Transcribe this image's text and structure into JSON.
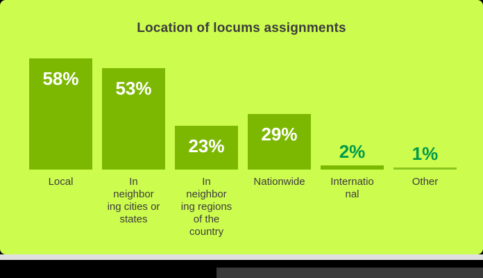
{
  "colors": {
    "card_background": "#ccfc4e",
    "bar_green": "#7cb802",
    "small_bar_green": "#8cc41e",
    "small_value_green": "#009a49",
    "value_white": "#ffffff",
    "title_text": "#3c3c3c",
    "category_text": "#3d3d3d",
    "strip_gray": "#e0e0e0",
    "letterbox_black": "#000000",
    "videobar_gray": "#3a3a3a"
  },
  "chart_data": {
    "type": "bar",
    "title": "Location of locums assignments",
    "categories": [
      "Local",
      "In\nneighbor\ning cities or\nstates",
      "In\nneighbor\ning regions\nof the\ncountry",
      "Nationwide",
      "Internatio\nnal",
      "Other"
    ],
    "values": [
      58,
      53,
      23,
      29,
      2,
      1
    ],
    "value_labels": [
      "58%",
      "53%",
      "23%",
      "29%",
      "2%",
      "1%"
    ],
    "unit": "%",
    "grid": false,
    "legend": "none",
    "axes_hidden": true,
    "bars": [
      {
        "category": "Local",
        "value": 58,
        "display": "58%",
        "label_position": "inside",
        "bar_color": "#7cb802",
        "value_color": "#ffffff"
      },
      {
        "category": "In\nneighbor\ning cities or\nstates",
        "value": 53,
        "display": "53%",
        "label_position": "inside",
        "bar_color": "#7cb802",
        "value_color": "#ffffff"
      },
      {
        "category": "In\nneighbor\ning regions\nof the\ncountry",
        "value": 23,
        "display": "23%",
        "label_position": "inside",
        "bar_color": "#7cb802",
        "value_color": "#ffffff"
      },
      {
        "category": "Nationwide",
        "value": 29,
        "display": "29%",
        "label_position": "inside",
        "bar_color": "#7cb802",
        "value_color": "#ffffff"
      },
      {
        "category": "Internatio\nnal",
        "value": 2,
        "display": "2%",
        "label_position": "above",
        "bar_color": "#7cb802",
        "value_color": "#009a49"
      },
      {
        "category": "Other",
        "value": 1,
        "display": "1%",
        "label_position": "above",
        "bar_color": "#8cc41e",
        "value_color": "#009a49"
      }
    ]
  }
}
